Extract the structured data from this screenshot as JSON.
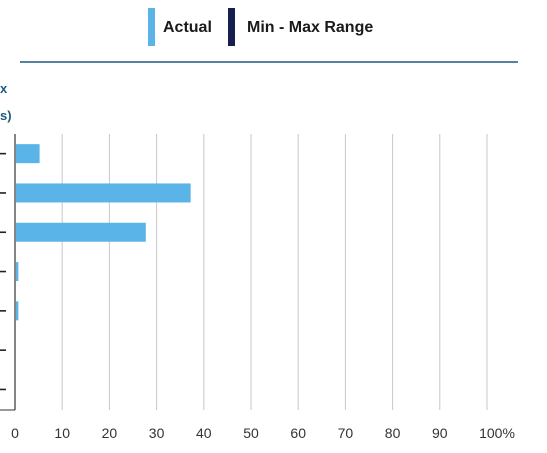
{
  "legend": {
    "items": [
      {
        "label": "Actual",
        "color": "#5ab4e8"
      },
      {
        "label": "Min - Max Range",
        "color": "#16204f"
      }
    ],
    "rule_color": "#1d5a82"
  },
  "chart_data": {
    "type": "bar",
    "orientation": "horizontal",
    "xlim": [
      0,
      100
    ],
    "x_ticks": [
      "0",
      "10",
      "20",
      "30",
      "40",
      "50",
      "60",
      "70",
      "80",
      "90",
      "100%"
    ],
    "ylabel_fragments": [
      "x",
      "s)"
    ],
    "series": [
      {
        "name": "Actual",
        "color": "#5ab4e8",
        "values": [
          5,
          37,
          27.5,
          0.5,
          0.5,
          0,
          0
        ]
      }
    ],
    "category_count": 7,
    "grid": true,
    "legend_position": "top"
  }
}
